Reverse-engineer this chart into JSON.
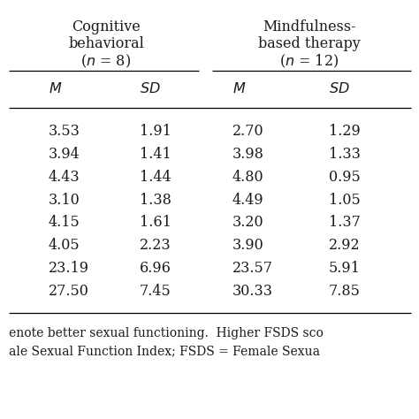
{
  "header1_line1": "Cognitive",
  "header1_line2": "behavioral",
  "header1_line3": "( n = 8)",
  "header2_line1": "Mindfulness-",
  "header2_line2": "based therapy",
  "header2_line3": "( n = 12)",
  "rows": [
    [
      "3.53",
      "1.91",
      "2.70",
      "1.29"
    ],
    [
      "3.94",
      "1.41",
      "3.98",
      "1.33"
    ],
    [
      "4.43",
      "1.44",
      "4.80",
      "0.95"
    ],
    [
      "3.10",
      "1.38",
      "4.49",
      "1.05"
    ],
    [
      "4.15",
      "1.61",
      "3.20",
      "1.37"
    ],
    [
      "4.05",
      "2.23",
      "3.90",
      "2.92"
    ],
    [
      "23.19",
      "6.96",
      "23.57",
      "5.91"
    ],
    [
      "27.50",
      "7.45",
      "30.33",
      "7.85"
    ]
  ],
  "footnote_line1": "enote better sexual functioning.  Higher FSDS sco",
  "footnote_line2": "ale Sexual Function Index; FSDS = Female Sexua",
  "bg_color": "#ffffff",
  "text_color": "#1a1a1a",
  "font_size": 11.5,
  "footnote_font_size": 10.0
}
